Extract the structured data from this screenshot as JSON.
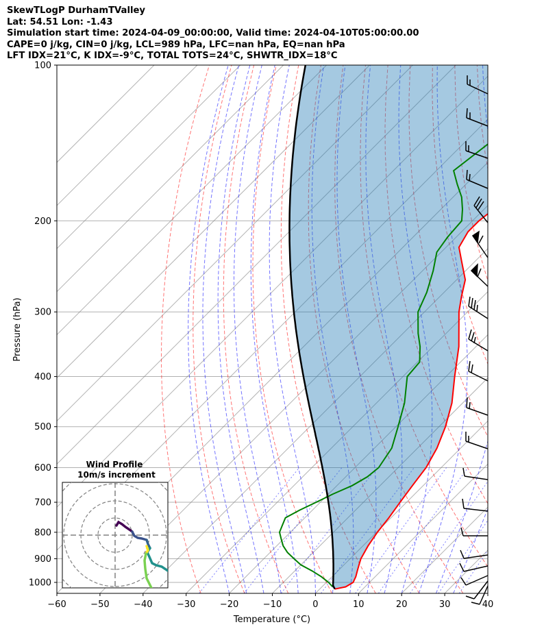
{
  "header": {
    "line1": "SkewTLogP DurhamTValley",
    "line2": "Lat: 54.51   Lon: -1.43",
    "line3": "Simulation start time: 2024-04-09_00:00:00, Valid time: 2024-04-10T05:00:00.00",
    "line4": "CAPE=0 j/kg, CIN=0 j/kg, LCL=989 hPa, LFC=nan hPa, EQ=nan hPa",
    "line5": "LFT IDX=21°C, K IDX=-9°C, TOTAL TOTS=24°C, SHWTR_IDX=18°C"
  },
  "chart_data": {
    "type": "line",
    "xlabel": "Temperature (°C)",
    "ylabel": "Pressure (hPa)",
    "xlim": [
      -60,
      40
    ],
    "ylim": [
      1050,
      100
    ],
    "y_scale": "log",
    "skew": "45 degrees",
    "x_ticks": [
      -60,
      -50,
      -40,
      -30,
      -20,
      -10,
      0,
      10,
      20,
      30,
      40
    ],
    "x_tick_labels": [
      "−60",
      "−50",
      "−40",
      "−30",
      "−20",
      "−10",
      "0",
      "10",
      "20",
      "30",
      "40"
    ],
    "y_ticks": [
      1000,
      900,
      800,
      700,
      600,
      500,
      400,
      300,
      200,
      100
    ],
    "y_tick_labels": [
      "1000",
      "900",
      "800",
      "700",
      "600",
      "500",
      "400",
      "300",
      "200",
      "100"
    ],
    "grid": true,
    "colors": {
      "temperature": "#ff0000",
      "dewpoint": "#008000",
      "parcel": "#000000",
      "shading": "#1f77b4",
      "dry_adiabats": "#ff0000",
      "moist_adiabats": "#0000ff",
      "mixing_ratio": "#0000ff",
      "isotherms": "#808080"
    },
    "series": [
      {
        "key": "temperature",
        "p": [
          1030,
          1020,
          1000,
          975,
          950,
          925,
          900,
          850,
          800,
          750,
          700,
          650,
          600,
          550,
          500,
          450,
          400,
          350,
          300,
          280,
          260,
          240,
          225,
          210,
          200,
          180,
          160,
          140,
          125,
          115,
          100
        ],
        "t": [
          3.5,
          5.5,
          6.2,
          5.5,
          4.5,
          3.5,
          2.5,
          1.2,
          0.2,
          -0.5,
          -1.5,
          -2.5,
          -3.5,
          -5.5,
          -8.5,
          -12.5,
          -18,
          -24,
          -32,
          -35,
          -38,
          -43,
          -47,
          -48.5,
          -48.5,
          -47,
          -44,
          -40,
          -36,
          -33,
          -27
        ]
      },
      {
        "key": "dewpoint",
        "p": [
          1020,
          1000,
          975,
          950,
          925,
          900,
          875,
          850,
          825,
          800,
          775,
          750,
          725,
          700,
          675,
          650,
          625,
          600,
          550,
          500,
          450,
          400,
          375,
          350,
          330,
          300,
          275,
          250,
          230,
          215,
          200,
          190,
          180,
          170,
          160,
          140,
          125,
          115,
          100
        ],
        "t": [
          2.5,
          0.5,
          -2.5,
          -6,
          -10,
          -13,
          -16,
          -18.5,
          -20.5,
          -22.5,
          -23.5,
          -24.5,
          -23,
          -21,
          -19,
          -16.5,
          -15,
          -14.5,
          -16,
          -19.5,
          -23.5,
          -29,
          -29.5,
          -33,
          -36.5,
          -41.5,
          -44,
          -47.5,
          -51,
          -52,
          -52.5,
          -55,
          -58,
          -62,
          -66,
          -64,
          -60,
          -57,
          -51
        ]
      }
    ]
  },
  "inset": {
    "title_line1": "Wind Profile",
    "title_line2": "10m/s increment"
  }
}
